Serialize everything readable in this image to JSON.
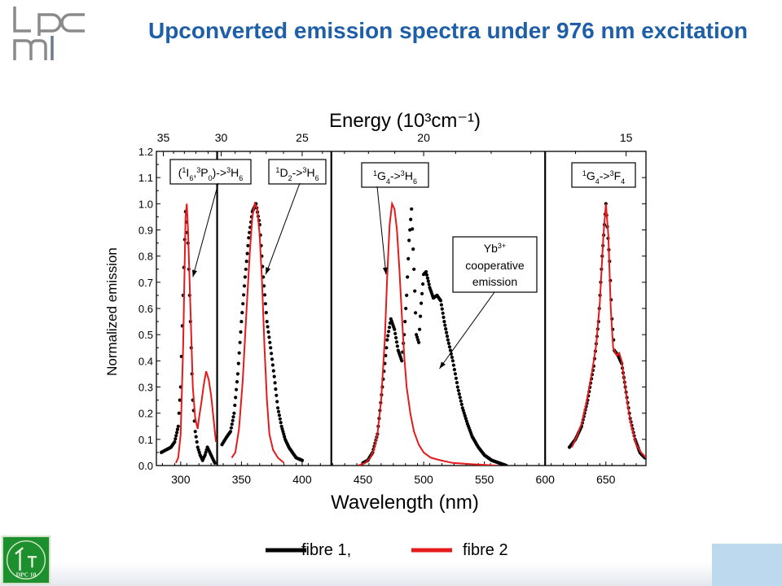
{
  "slide": {
    "title": "Upconverted emission spectra under 976 nm excitation",
    "logo_text": "lpcm"
  },
  "emblem": {
    "label": "DPC 10"
  },
  "colors": {
    "title": "#1f5fa8",
    "fibre1": "#000000",
    "fibre2": "#e41a1c"
  },
  "legend": {
    "items": [
      {
        "label": "fibre 1,",
        "color": "#000000"
      },
      {
        "label": "fibre 2",
        "color": "#e41a1c"
      }
    ]
  },
  "chart_data": {
    "type": "line",
    "title": "",
    "xlabel": "Wavelength (nm)",
    "ylabel": "Normalized emission",
    "top_axis_label": "Energy (10³cm⁻¹)",
    "xlim": [
      280,
      683
    ],
    "ylim": [
      0.0,
      1.2
    ],
    "grid": false,
    "legend_position": "bottom",
    "panels": [
      {
        "xlim": [
          280,
          330
        ],
        "xticks": [
          300
        ]
      },
      {
        "xlim": [
          330,
          424
        ],
        "xticks": [
          350,
          400
        ]
      },
      {
        "xlim": [
          424,
          600
        ],
        "xticks": [
          450,
          500,
          550,
          600
        ]
      },
      {
        "xlim": [
          600,
          683
        ],
        "xticks": [
          650
        ]
      }
    ],
    "xticks": [
      300,
      350,
      400,
      450,
      500,
      550,
      600,
      650
    ],
    "yticks": [
      "0.0",
      "0.1",
      "0.2",
      "0.3",
      "0.4",
      "0.5",
      "0.6",
      "0.7",
      "0.8",
      "0.9",
      "1.0",
      "1.1",
      "1.2"
    ],
    "top_ticks": [
      35,
      30,
      25,
      20,
      15
    ],
    "annotations": [
      {
        "text": "(¹I₆,³P₀)->³H₆",
        "arrow_to": [
          310,
          0.72
        ]
      },
      {
        "text": "¹D₂->³H₆",
        "arrow_to": [
          370,
          0.73
        ]
      },
      {
        "text": "¹G₄->³H₆",
        "arrow_to": [
          469,
          0.73
        ]
      },
      {
        "text": "Yb³⁺ cooperative emission",
        "arrow_to": [
          513,
          0.37
        ]
      },
      {
        "text": "¹G₄->³F₄",
        "arrow_to": null
      }
    ],
    "series": [
      {
        "name": "fibre 1,",
        "style": "dots",
        "color": "#000000",
        "segments": [
          [
            [
              284,
              0.05
            ],
            [
              288,
              0.06
            ],
            [
              292,
              0.07
            ],
            [
              295,
              0.09
            ],
            [
              298,
              0.15
            ],
            [
              300,
              0.3
            ],
            [
              302,
              0.65
            ],
            [
              304,
              0.97
            ],
            [
              306,
              0.85
            ],
            [
              308,
              0.55
            ],
            [
              310,
              0.25
            ],
            [
              312,
              0.13
            ],
            [
              314,
              0.07
            ],
            [
              316,
              0.04
            ],
            [
              318,
              0.02
            ],
            [
              320,
              0.04
            ],
            [
              322,
              0.07
            ],
            [
              324,
              0.05
            ],
            [
              326,
              0.03
            ],
            [
              328,
              0.01
            ]
          ],
          [
            [
              334,
              0.08
            ],
            [
              338,
              0.11
            ],
            [
              341,
              0.13
            ],
            [
              344,
              0.2
            ],
            [
              347,
              0.35
            ],
            [
              350,
              0.55
            ],
            [
              353,
              0.72
            ],
            [
              356,
              0.87
            ],
            [
              359,
              0.97
            ],
            [
              362,
              1.0
            ],
            [
              365,
              0.92
            ],
            [
              368,
              0.72
            ],
            [
              371,
              0.55
            ],
            [
              374,
              0.45
            ],
            [
              377,
              0.34
            ],
            [
              380,
              0.22
            ],
            [
              383,
              0.15
            ],
            [
              386,
              0.1
            ],
            [
              389,
              0.07
            ],
            [
              392,
              0.05
            ],
            [
              395,
              0.03
            ],
            [
              400,
              0.02
            ]
          ],
          [
            [
              450,
              0.01
            ],
            [
              454,
              0.02
            ],
            [
              458,
              0.05
            ],
            [
              462,
              0.12
            ],
            [
              466,
              0.3
            ],
            [
              470,
              0.48
            ],
            [
              473,
              0.56
            ],
            [
              476,
              0.52
            ],
            [
              479,
              0.44
            ],
            [
              482,
              0.4
            ],
            [
              484,
              0.5
            ],
            [
              486,
              0.65
            ],
            [
              488,
              0.86
            ],
            [
              490,
              0.98
            ],
            [
              492,
              0.75
            ],
            [
              494,
              0.5
            ],
            [
              496,
              0.47
            ],
            [
              498,
              0.62
            ],
            [
              500,
              0.73
            ],
            [
              502,
              0.74
            ],
            [
              505,
              0.68
            ],
            [
              508,
              0.64
            ],
            [
              511,
              0.65
            ],
            [
              514,
              0.63
            ],
            [
              517,
              0.55
            ],
            [
              520,
              0.48
            ],
            [
              524,
              0.4
            ],
            [
              528,
              0.3
            ],
            [
              532,
              0.22
            ],
            [
              536,
              0.16
            ],
            [
              540,
              0.11
            ],
            [
              545,
              0.07
            ],
            [
              550,
              0.04
            ],
            [
              556,
              0.02
            ],
            [
              562,
              0.01
            ],
            [
              568,
              0.0
            ]
          ],
          [
            [
              620,
              0.07
            ],
            [
              625,
              0.1
            ],
            [
              630,
              0.15
            ],
            [
              635,
              0.25
            ],
            [
              640,
              0.38
            ],
            [
              644,
              0.55
            ],
            [
              647,
              0.8
            ],
            [
              650,
              1.0
            ],
            [
              653,
              0.78
            ],
            [
              655,
              0.56
            ],
            [
              657,
              0.44
            ],
            [
              660,
              0.42
            ],
            [
              663,
              0.39
            ],
            [
              666,
              0.3
            ],
            [
              670,
              0.18
            ],
            [
              674,
              0.1
            ],
            [
              678,
              0.05
            ],
            [
              682,
              0.03
            ]
          ]
        ]
      },
      {
        "name": "fibre 2",
        "style": "line",
        "color": "#e41a1c",
        "segments": [
          [
            [
              296,
              0.01
            ],
            [
              298,
              0.03
            ],
            [
              300,
              0.12
            ],
            [
              302,
              0.45
            ],
            [
              303,
              0.7
            ],
            [
              304,
              0.95
            ],
            [
              305,
              1.0
            ],
            [
              306,
              0.9
            ],
            [
              308,
              0.6
            ],
            [
              310,
              0.3
            ],
            [
              312,
              0.18
            ],
            [
              314,
              0.14
            ],
            [
              315,
              0.18
            ],
            [
              317,
              0.24
            ],
            [
              319,
              0.31
            ],
            [
              321,
              0.36
            ],
            [
              323,
              0.33
            ],
            [
              325,
              0.27
            ],
            [
              327,
              0.18
            ],
            [
              329,
              0.09
            ]
          ],
          [
            [
              342,
              0.03
            ],
            [
              345,
              0.05
            ],
            [
              348,
              0.14
            ],
            [
              351,
              0.32
            ],
            [
              354,
              0.58
            ],
            [
              357,
              0.82
            ],
            [
              359,
              0.95
            ],
            [
              361,
              1.0
            ],
            [
              363,
              0.98
            ],
            [
              365,
              0.88
            ],
            [
              367,
              0.7
            ],
            [
              369,
              0.45
            ],
            [
              371,
              0.25
            ],
            [
              373,
              0.12
            ],
            [
              376,
              0.06
            ],
            [
              380,
              0.03
            ],
            [
              385,
              0.01
            ]
          ],
          [
            [
              446,
              0.0
            ],
            [
              452,
              0.01
            ],
            [
              456,
              0.03
            ],
            [
              459,
              0.06
            ],
            [
              462,
              0.12
            ],
            [
              465,
              0.25
            ],
            [
              468,
              0.48
            ],
            [
              470,
              0.72
            ],
            [
              472,
              0.92
            ],
            [
              474,
              1.0
            ],
            [
              476,
              0.98
            ],
            [
              478,
              0.9
            ],
            [
              480,
              0.75
            ],
            [
              482,
              0.58
            ],
            [
              484,
              0.42
            ],
            [
              486,
              0.3
            ],
            [
              489,
              0.2
            ],
            [
              492,
              0.13
            ],
            [
              496,
              0.08
            ],
            [
              500,
              0.05
            ],
            [
              506,
              0.03
            ],
            [
              514,
              0.02
            ],
            [
              524,
              0.01
            ],
            [
              540,
              0.005
            ],
            [
              560,
              0.0
            ]
          ],
          [
            [
              622,
              0.07
            ],
            [
              626,
              0.11
            ],
            [
              630,
              0.16
            ],
            [
              634,
              0.24
            ],
            [
              638,
              0.34
            ],
            [
              642,
              0.46
            ],
            [
              645,
              0.62
            ],
            [
              648,
              0.88
            ],
            [
              650,
              1.0
            ],
            [
              652,
              0.88
            ],
            [
              654,
              0.6
            ],
            [
              656,
              0.45
            ],
            [
              659,
              0.42
            ],
            [
              661,
              0.43
            ],
            [
              663,
              0.4
            ],
            [
              665,
              0.33
            ],
            [
              668,
              0.23
            ],
            [
              671,
              0.15
            ],
            [
              675,
              0.08
            ],
            [
              679,
              0.05
            ],
            [
              683,
              0.03
            ]
          ]
        ]
      }
    ]
  }
}
